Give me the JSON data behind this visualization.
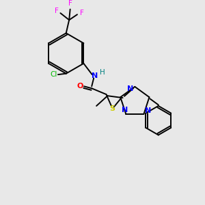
{
  "bg_color": "#e8e8e8",
  "colors": {
    "N": "#0000ff",
    "O": "#ff0000",
    "S": "#cccc00",
    "Cl": "#00bb00",
    "F": "#ff00ff",
    "C": "#000000",
    "H": "#008080"
  }
}
